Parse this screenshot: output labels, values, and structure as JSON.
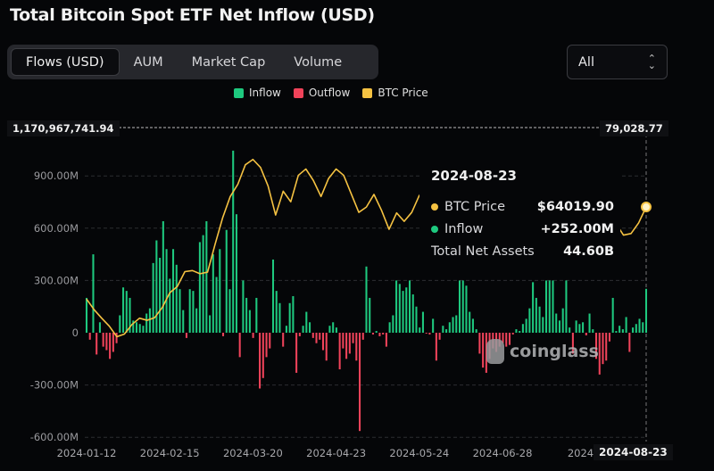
{
  "title": "Total Bitcoin Spot ETF Net Inflow (USD)",
  "tabs": [
    {
      "label": "Flows (USD)",
      "active": true
    },
    {
      "label": "AUM",
      "active": false
    },
    {
      "label": "Market Cap",
      "active": false
    },
    {
      "label": "Volume",
      "active": false
    }
  ],
  "range_select": {
    "value": "All",
    "icon": "chevron-up-down-icon"
  },
  "watermark": "coinglass",
  "colors": {
    "inflow": "#1ec97f",
    "outflow": "#f0435a",
    "btc_price": "#f5c242",
    "background": "#050608"
  },
  "tooltip": {
    "date": "2024-08-23",
    "rows": [
      {
        "label": "BTC Price",
        "value": "$64019.90"
      },
      {
        "label": "Inflow",
        "value": "+252.00M"
      },
      {
        "label": "Total Net Assets",
        "value": "44.60B"
      }
    ]
  },
  "crosshair": {
    "left_value": "1,170,967,741.94",
    "right_value": "79,028.77",
    "date": "2024-08-23"
  },
  "chart_data": {
    "type": "bar",
    "legend": [
      "Inflow",
      "Outflow",
      "BTC Price"
    ],
    "legend_position": "top",
    "grid": true,
    "x_ticks": [
      "2024-01-12",
      "2024-02-15",
      "2024-03-20",
      "2024-04-23",
      "2024-05-24",
      "2024-06-28",
      "2024-0"
    ],
    "y_ticks": [
      "900.00M",
      "600.00M",
      "300.00M",
      "0",
      "-300.00M",
      "-600.00M"
    ],
    "ylim": [
      -600,
      1170.97
    ],
    "y2lim_top": 79028.77,
    "unit": "M USD",
    "net_flow": [
      200,
      -40,
      450,
      -125,
      60,
      -80,
      -100,
      -150,
      -110,
      -60,
      100,
      260,
      240,
      200,
      70,
      60,
      50,
      40,
      110,
      140,
      400,
      530,
      430,
      640,
      480,
      310,
      480,
      390,
      250,
      130,
      -30,
      250,
      240,
      140,
      520,
      560,
      640,
      100,
      450,
      320,
      480,
      -20,
      590,
      250,
      1045,
      680,
      -140,
      300,
      200,
      130,
      -30,
      200,
      -320,
      -260,
      -140,
      -90,
      420,
      240,
      170,
      -80,
      40,
      170,
      210,
      -230,
      -20,
      40,
      120,
      60,
      -30,
      -60,
      -40,
      -100,
      -160,
      40,
      60,
      30,
      -210,
      -90,
      -150,
      -120,
      -60,
      -160,
      -564,
      -40,
      380,
      200,
      -10,
      10,
      -20,
      -10,
      -80,
      60,
      100,
      300,
      280,
      240,
      260,
      300,
      220,
      150,
      30,
      120,
      -5,
      -10,
      80,
      -160,
      -40,
      40,
      20,
      60,
      90,
      100,
      300,
      300,
      270,
      120,
      80,
      20,
      -120,
      -200,
      -230,
      -150,
      -90,
      -110,
      -80,
      -60,
      -80,
      -70,
      -10,
      20,
      10,
      50,
      80,
      140,
      290,
      200,
      150,
      90,
      300,
      300,
      300,
      110,
      70,
      140,
      300,
      30,
      -120,
      70,
      50,
      60,
      -15,
      110,
      20,
      -150,
      -240,
      -180,
      -160,
      -50,
      200,
      10,
      40,
      20,
      90,
      -110,
      30,
      50,
      80,
      60,
      252
    ],
    "btc_price": [
      46600,
      44600,
      43000,
      41500,
      39500,
      40000,
      41800,
      43000,
      42600,
      43100,
      45000,
      47800,
      49000,
      51800,
      52000,
      51400,
      51700,
      57000,
      62000,
      66000,
      68300,
      72000,
      73000,
      71500,
      68000,
      62500,
      67000,
      65000,
      70000,
      71200,
      69000,
      66000,
      69400,
      71200,
      70000,
      66500,
      63000,
      64000,
      66400,
      63400,
      59800,
      62900,
      61300,
      63000,
      66200,
      67000,
      71400,
      69000,
      68500,
      67600,
      65000,
      66000,
      67500,
      66200,
      64000,
      61000,
      60500,
      62700,
      57000,
      56500,
      58000,
      60000,
      64000,
      66500,
      67500,
      68200,
      65000,
      61000,
      54000,
      56000,
      60900,
      58700,
      59000,
      61000,
      64019.9
    ]
  }
}
